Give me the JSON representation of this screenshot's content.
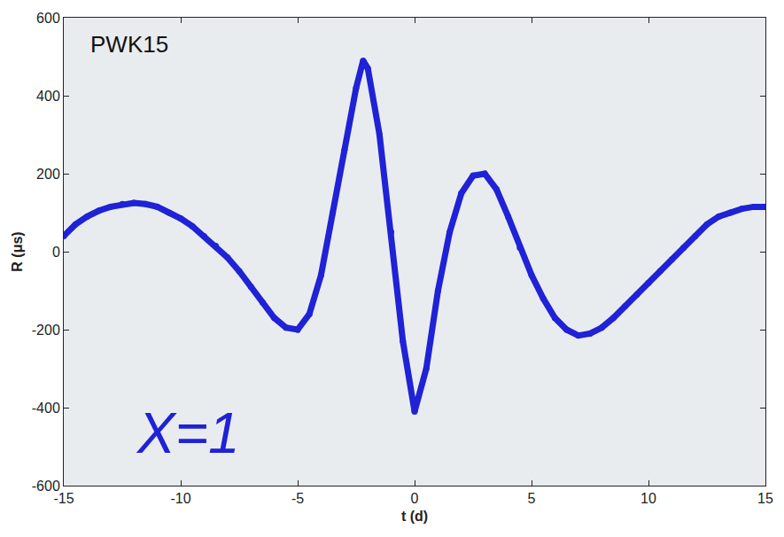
{
  "chart_data": {
    "type": "scatter",
    "x_label": "t (d)",
    "y_label": "R (μs)",
    "annotations": [
      "PWK15",
      "X=1"
    ],
    "xlim": [
      -15,
      15
    ],
    "xticks": [
      -15,
      -10,
      -5,
      0,
      5,
      10,
      15
    ],
    "ylim": [
      -600,
      600
    ],
    "yticks": [
      -600,
      -400,
      -200,
      0,
      200,
      400,
      600
    ],
    "grid": false,
    "color": "#1f22d6",
    "marker": "circle",
    "line_style": "solid",
    "x": [
      -15,
      -14.5,
      -14,
      -13.5,
      -13,
      -12.5,
      -12,
      -11.5,
      -11,
      -10.5,
      -10,
      -9.5,
      -9,
      -8.5,
      -8,
      -7.5,
      -7,
      -6.5,
      -6,
      -5.5,
      -5,
      -4.5,
      -4,
      -3.5,
      -3,
      -2.5,
      -2.2,
      -2,
      -1.5,
      -1,
      -0.5,
      0,
      0.5,
      1,
      1.5,
      2,
      2.5,
      3,
      3.5,
      4,
      4.5,
      5,
      5.5,
      6,
      6.5,
      7,
      7.5,
      8,
      8.5,
      9,
      9.5,
      10,
      10.5,
      11,
      11.5,
      12,
      12.5,
      13,
      13.5,
      14,
      14.5,
      15
    ],
    "values": [
      40,
      70,
      90,
      105,
      115,
      122,
      125,
      122,
      115,
      100,
      85,
      65,
      40,
      15,
      -15,
      -50,
      -90,
      -130,
      -170,
      -195,
      -200,
      -160,
      -60,
      100,
      260,
      420,
      490,
      470,
      300,
      50,
      -230,
      -410,
      -300,
      -100,
      50,
      150,
      195,
      200,
      160,
      90,
      10,
      -60,
      -120,
      -170,
      -200,
      -215,
      -210,
      -195,
      -170,
      -140,
      -110,
      -80,
      -50,
      -20,
      10,
      40,
      70,
      90,
      100,
      110,
      115,
      115
    ]
  }
}
